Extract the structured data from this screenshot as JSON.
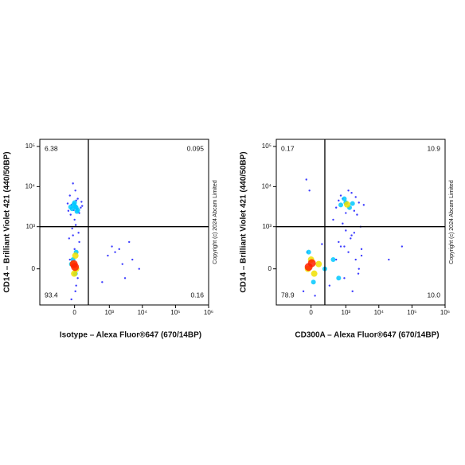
{
  "chart_data": [
    {
      "type": "density",
      "xlabel": "Isotype – Alexa Fluor®647 (670/14BP)",
      "ylabel": "CD14 – Brilliant Violet 421 (440/50BP)",
      "note": "Copyright (c) 2024 Abcam Limited",
      "xscale": "arcsinh",
      "yscale": "arcsinh",
      "xlim": [
        -1000,
        1000000
      ],
      "ylim": [
        -700,
        150000
      ],
      "xticks": [
        0,
        {
          "value": 1000,
          "label": "10³"
        },
        {
          "value": 10000,
          "label": "10⁴"
        },
        {
          "value": 100000,
          "label": "10⁵"
        },
        {
          "value": 1000000,
          "label": "10⁶"
        }
      ],
      "yticks": [
        0,
        {
          "value": 1000,
          "label": "10³"
        },
        {
          "value": 10000,
          "label": "10⁴"
        },
        {
          "value": 100000,
          "label": "10⁵"
        }
      ],
      "gate": {
        "x": 200,
        "y": 1000
      },
      "quadrants": {
        "values": [
          6.38,
          0.095,
          93.4,
          0.16
        ],
        "value_labels": [
          "6.38",
          "0.095",
          "93.4",
          "0.16"
        ]
      },
      "series": [
        {
          "color": "#1a1aff",
          "x": [
            -80,
            -40,
            20,
            60,
            -60,
            10,
            80,
            -20,
            40,
            -90,
            30,
            -50,
            90,
            0,
            -30,
            50,
            15,
            -70,
            100,
            -10,
            20,
            -40,
            60,
            -20,
            0,
            40,
            -60,
            10,
            1500,
            2500,
            5000,
            3000,
            1200,
            8000,
            900,
            4000,
            600,
            2000
          ],
          "y": [
            2500,
            3500,
            4500,
            2200,
            6000,
            8000,
            3000,
            12000,
            5000,
            3800,
            2800,
            2000,
            4200,
            1500,
            900,
            700,
            1100,
            500,
            3300,
            2600,
            -200,
            -500,
            400,
            600,
            250,
            -100,
            100,
            -300,
            200,
            50,
            100,
            -100,
            300,
            0,
            150,
            400,
            -150,
            250
          ]
        },
        {
          "color": "#00c8ff",
          "x": [
            -30,
            10,
            40,
            -10,
            20,
            -50,
            0,
            30,
            -20,
            10,
            -40,
            20
          ],
          "y": [
            2800,
            3200,
            2600,
            3600,
            3000,
            3100,
            4000,
            2400,
            100,
            -50,
            50,
            200
          ]
        },
        {
          "color": "#f0e000",
          "x": [
            -20,
            10,
            -5,
            20
          ],
          "y": [
            50,
            150,
            -50,
            0
          ]
        },
        {
          "color": "#ff2000",
          "x": [
            -10,
            5
          ],
          "y": [
            50,
            20
          ]
        }
      ]
    },
    {
      "type": "density",
      "xlabel": "CD300A – Alexa Fluor®647 (670/14BP)",
      "ylabel": "CD14 – Brilliant Violet 421 (440/50BP)",
      "note": "Copyright (c) 2024 Abcam Limited",
      "xscale": "arcsinh",
      "yscale": "arcsinh",
      "xlim": [
        -1000,
        1000000
      ],
      "ylim": [
        -700,
        150000
      ],
      "xticks": [
        0,
        {
          "value": 1000,
          "label": "10³"
        },
        {
          "value": 10000,
          "label": "10⁴"
        },
        {
          "value": 100000,
          "label": "10⁵"
        },
        {
          "value": 1000000,
          "label": "10⁶"
        }
      ],
      "yticks": [
        0,
        {
          "value": 1000,
          "label": "10³"
        },
        {
          "value": 10000,
          "label": "10⁴"
        },
        {
          "value": 100000,
          "label": "10⁵"
        }
      ],
      "gate": {
        "x": 200,
        "y": 1000
      },
      "quadrants": {
        "values": [
          0.17,
          10.9,
          78.9,
          10.0
        ],
        "value_labels": [
          "0.17",
          "10.9",
          "78.9",
          "10.0"
        ]
      },
      "series": [
        {
          "color": "#1a1aff",
          "x": [
            -100,
            -50,
            50,
            150,
            300,
            500,
            700,
            900,
            1200,
            1600,
            2000,
            2500,
            3000,
            800,
            1000,
            1500,
            400,
            600,
            2200,
            2800,
            500,
            800,
            1200,
            1800,
            2500,
            3500,
            700,
            1000,
            1500,
            2000,
            600,
            900,
            1400,
            1800,
            2400,
            3000,
            -60,
            -20,
            20000,
            50000
          ],
          "y": [
            -300,
            200,
            -400,
            350,
            -200,
            100,
            300,
            -100,
            200,
            -300,
            100,
            0,
            250,
            1200,
            800,
            600,
            1500,
            400,
            2000,
            1000,
            3000,
            5000,
            8000,
            2500,
            4000,
            3500,
            6000,
            2200,
            7000,
            5500,
            4500,
            300,
            500,
            700,
            -50,
            150,
            15000,
            8000,
            100,
            300
          ]
        },
        {
          "color": "#00c8ff",
          "x": [
            700,
            1000,
            1300,
            900,
            1600,
            200,
            400,
            600,
            -30,
            30
          ],
          "y": [
            3500,
            4000,
            3000,
            5000,
            3800,
            0,
            100,
            -100,
            200,
            -150
          ]
        },
        {
          "color": "#f0e000",
          "x": [
            -40,
            0,
            40,
            100,
            1100
          ],
          "y": [
            0,
            100,
            -50,
            50,
            3600
          ]
        },
        {
          "color": "#ff2000",
          "x": [
            -30,
            10
          ],
          "y": [
            20,
            60
          ]
        }
      ]
    }
  ]
}
